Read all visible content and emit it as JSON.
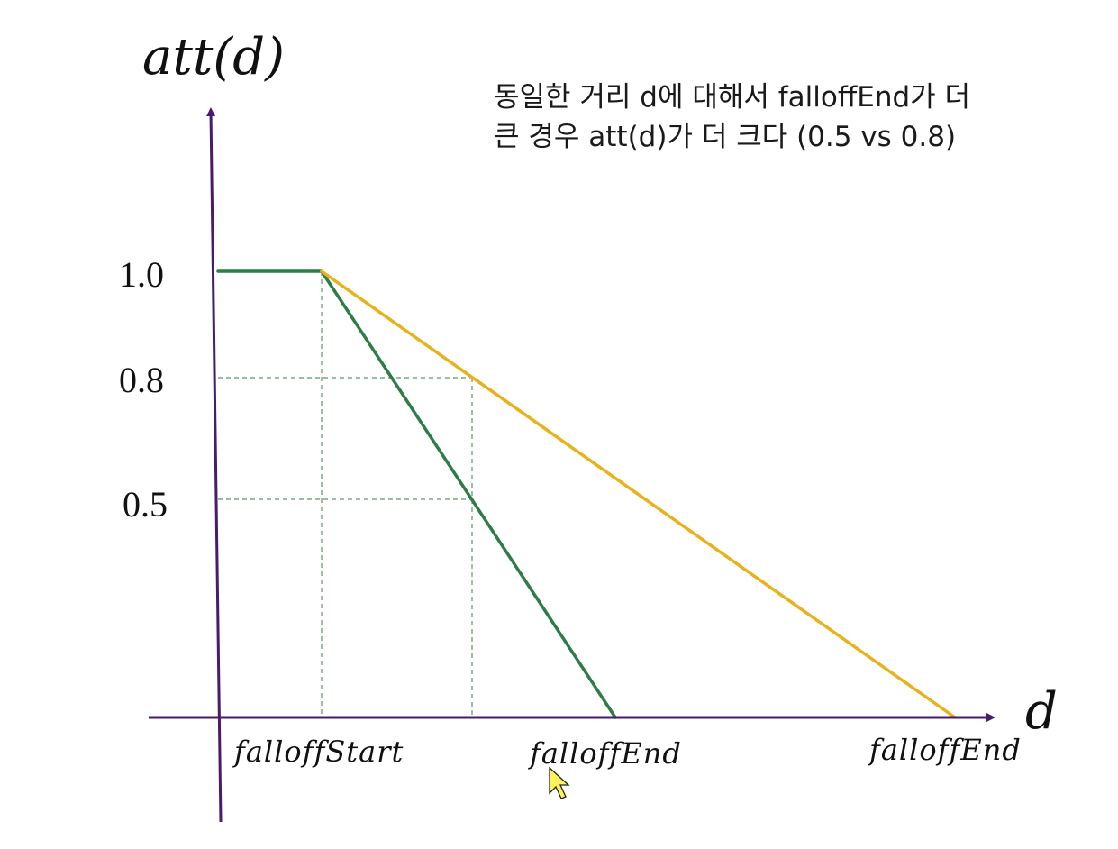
{
  "annotation": {
    "line1": "동일한 거리 d에 대해서 falloffEnd가 더",
    "line2": "큰 경우 att(d)가 더 크다 (0.5 vs 0.8)"
  },
  "chart_data": {
    "type": "line",
    "ylabel": "att(d)",
    "xlabel": "d",
    "yticks": [
      {
        "value": 1.0,
        "label": "1.0"
      },
      {
        "value": 0.8,
        "label": "0.8"
      },
      {
        "value": 0.5,
        "label": "0.5"
      }
    ],
    "xticks": [
      {
        "key": "falloffStart",
        "label": "falloffStart"
      },
      {
        "key": "falloffEnd_near",
        "label": "falloffEnd"
      },
      {
        "key": "falloffEnd_far",
        "label": "falloffEnd"
      }
    ],
    "series": [
      {
        "color": "#2e7d46",
        "points": [
          {
            "x": 0,
            "y": 1.0
          },
          {
            "x": "falloffStart",
            "y": 1.0
          },
          {
            "x": "falloffEnd_near",
            "y": 0.0
          }
        ]
      },
      {
        "color": "#e8b21c",
        "points": [
          {
            "x": "falloffStart",
            "y": 1.0
          },
          {
            "x": "falloffEnd_far",
            "y": 0.0
          }
        ]
      }
    ],
    "guides": {
      "y_values": [
        0.8,
        0.5
      ],
      "color": "#2e7d46"
    },
    "axis_color": "#4a1a6b"
  }
}
